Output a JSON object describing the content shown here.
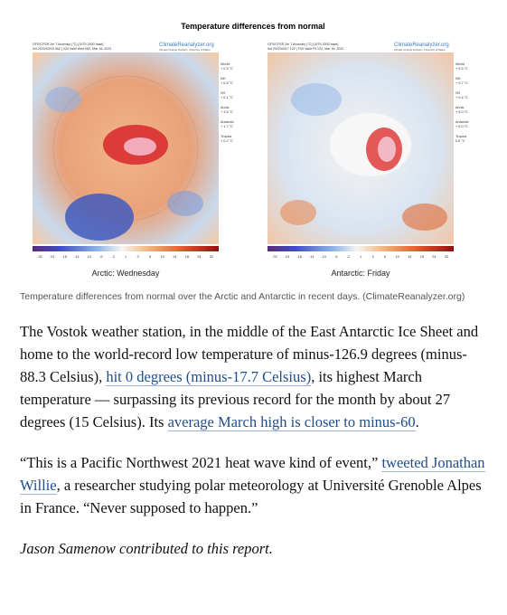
{
  "figure": {
    "title": "Temperature differences from normal",
    "panels": [
      {
        "header": "GFS/CFSR 2m T Anomaly (°C) [1979-2000 base]",
        "run": "Init 2022/03/15 06Z | 024 Valid Wed 06Z, Mar 16, 2022",
        "brand": "ClimateReanalyzer.org",
        "institute": "Climate Change Institute | University of Maine",
        "stats": [
          [
            "World",
            "+ 0.5 °C"
          ],
          [
            "NH",
            "+ 0.8 °C"
          ],
          [
            "SH",
            "+ 0.1 °C"
          ],
          [
            "Arctic",
            "+ 3.6 °C"
          ],
          [
            "Antarctic",
            "+ 1.7 °C"
          ],
          [
            "Tropics",
            "+ 0.2 °C"
          ]
        ],
        "caption": "Arctic: Wednesday"
      },
      {
        "header": "GFS/CFSR 2m T Anomaly (°C) [1979-2000 base]",
        "run": "Init 2022/03/17 12Z | F00 Valid Fri 12Z, Mar 18, 2022",
        "brand": "ClimateReanalyzer.org",
        "institute": "Climate Change Institute | University of Maine",
        "stats": [
          [
            "World",
            "+ 0.5 °C"
          ],
          [
            "NH",
            "+ 0.7 °C"
          ],
          [
            "SH",
            "+ 0.4 °C"
          ],
          [
            "Arctic",
            "+ 3.0 °C"
          ],
          [
            "Antarctic",
            "+ 5.0 °C"
          ],
          [
            "Tropics",
            "0.0 °C"
          ]
        ],
        "caption": "Antarctic: Friday"
      }
    ],
    "colorbar_ticks": [
      "-32",
      "-24",
      "-18",
      "-14",
      "-10",
      "-6",
      "-2",
      "1",
      "3",
      "6",
      "10",
      "14",
      "18",
      "24",
      "32"
    ]
  },
  "caption": "Temperature differences from normal over the Arctic and Antarctic in recent days. (ClimateReanalyzer.org)",
  "paragraphs": [
    {
      "style": "normal",
      "runs": [
        {
          "text": "The Vostok weather station, in the middle of the East Antarctic Ice Sheet and home to the world-record low temperature of minus-126.9 degrees (minus-88.3 Celsius), "
        },
        {
          "text": "hit 0 degrees (minus-17.7 Celsius)",
          "link": true
        },
        {
          "text": ", its highest March temperature — surpassing its previous record for the month by about 27 degrees (15 Celsius). Its "
        },
        {
          "text": "average March high is closer to minus-60",
          "link": true
        },
        {
          "text": "."
        }
      ]
    },
    {
      "style": "normal",
      "runs": [
        {
          "text": "“This is a Pacific Northwest 2021 heat wave kind of event,” "
        },
        {
          "text": "tweeted Jonathan Willie",
          "link": true
        },
        {
          "text": ", a researcher studying polar meteorology at Université Grenoble Alpes in France. “Never supposed to happen.”"
        }
      ]
    },
    {
      "style": "italic",
      "runs": [
        {
          "text": "Jason Samenow contributed to this report."
        }
      ]
    }
  ]
}
